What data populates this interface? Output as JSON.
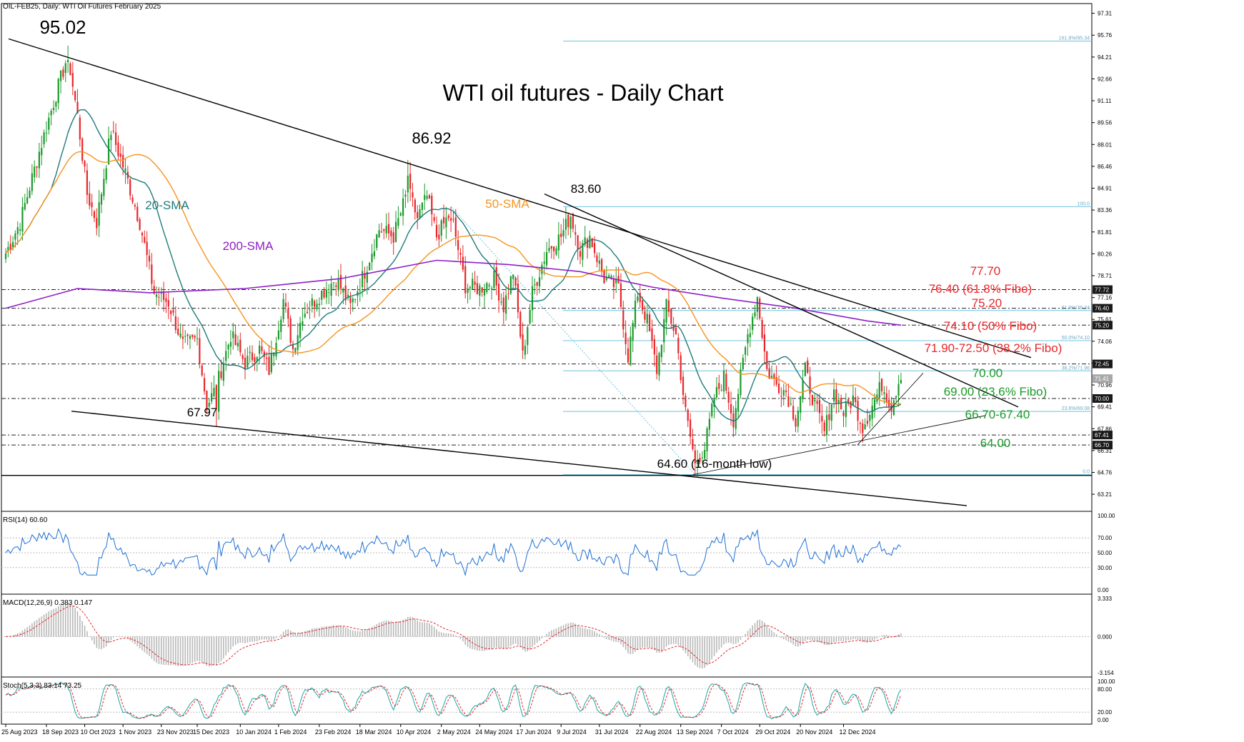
{
  "header": {
    "symbol_line": "OIL-FEB25, Daily: WTI Oil Futures February 2025",
    "rsi_label": "RSI(14) 60.60",
    "macd_label": "MACD(12,26,9) 0.383 0.147",
    "stoch_label": "Stoch(5,3,3) 83.14 73.25"
  },
  "chart_data": [
    {
      "type": "candlestick",
      "title": "WTI oil futures  - Daily Chart",
      "ylim": [
        62.0,
        98.0
      ],
      "y_ticks": [
        "97.31",
        "95.76",
        "94.21",
        "92.66",
        "91.11",
        "89.56",
        "88.01",
        "86.46",
        "84.91",
        "83.36",
        "81.81",
        "80.26",
        "78.71",
        "77.16",
        "75.61",
        "74.06",
        "72.51",
        "70.96",
        "69.41",
        "67.86",
        "66.31",
        "64.76",
        "63.21"
      ],
      "price_tags": [
        {
          "label": "77.72",
          "value": 77.72,
          "style": "dark"
        },
        {
          "label": "76.40",
          "value": 76.4,
          "style": "dark"
        },
        {
          "label": "75.20",
          "value": 75.2,
          "style": "dark"
        },
        {
          "label": "72.45",
          "value": 72.45,
          "style": "dark"
        },
        {
          "label": "71.41",
          "value": 71.41,
          "style": "grey"
        },
        {
          "label": "70.00",
          "value": 70.0,
          "style": "dark"
        },
        {
          "label": "67.41",
          "value": 67.41,
          "style": "dark"
        },
        {
          "label": "66.70",
          "value": 66.7,
          "style": "dark"
        }
      ],
      "x_ticks": [
        "25 Aug 2023",
        "18 Sep 2023",
        "10 Oct 2023",
        "1 Nov 2023",
        "23 Nov 2023",
        "15 Dec 2023",
        "10 Jan 2024",
        "1 Feb 2024",
        "23 Feb 2024",
        "18 Mar 2024",
        "10 Apr 2024",
        "2 May 2024",
        "24 May 2024",
        "17 Jun 2024",
        "9 Jul 2024",
        "31 Jul 2024",
        "22 Aug 2024",
        "13 Sep 2024",
        "7 Oct 2024",
        "29 Oct 2024",
        "20 Nov 2024",
        "12 Dec 2024"
      ],
      "key_points": [
        {
          "i": 0,
          "v": 80.3
        },
        {
          "i": 6,
          "v": 82.5
        },
        {
          "i": 14,
          "v": 87.5
        },
        {
          "i": 20,
          "v": 91.0
        },
        {
          "i": 26,
          "v": 94.4
        },
        {
          "i": 30,
          "v": 90.0
        },
        {
          "i": 34,
          "v": 84.5
        },
        {
          "i": 38,
          "v": 82.5
        },
        {
          "i": 44,
          "v": 89.0
        },
        {
          "i": 50,
          "v": 86.0
        },
        {
          "i": 56,
          "v": 82.5
        },
        {
          "i": 62,
          "v": 77.5
        },
        {
          "i": 68,
          "v": 76.8
        },
        {
          "i": 74,
          "v": 73.8
        },
        {
          "i": 80,
          "v": 74.2
        },
        {
          "i": 84,
          "v": 69.5
        },
        {
          "i": 88,
          "v": 70.8
        },
        {
          "i": 94,
          "v": 74.5
        },
        {
          "i": 100,
          "v": 72.5
        },
        {
          "i": 106,
          "v": 73.5
        },
        {
          "i": 110,
          "v": 72.0
        },
        {
          "i": 116,
          "v": 77.0
        },
        {
          "i": 120,
          "v": 73.5
        },
        {
          "i": 124,
          "v": 76.0
        },
        {
          "i": 132,
          "v": 77.5
        },
        {
          "i": 138,
          "v": 78.5
        },
        {
          "i": 144,
          "v": 76.5
        },
        {
          "i": 150,
          "v": 79.0
        },
        {
          "i": 156,
          "v": 82.0
        },
        {
          "i": 162,
          "v": 81.5
        },
        {
          "i": 168,
          "v": 84.8
        },
        {
          "i": 172,
          "v": 82.8
        },
        {
          "i": 176,
          "v": 84.3
        },
        {
          "i": 180,
          "v": 81.5
        },
        {
          "i": 186,
          "v": 83.2
        },
        {
          "i": 192,
          "v": 78.0
        },
        {
          "i": 198,
          "v": 77.8
        },
        {
          "i": 204,
          "v": 78.5
        },
        {
          "i": 208,
          "v": 76.5
        },
        {
          "i": 212,
          "v": 79.0
        },
        {
          "i": 216,
          "v": 73.0
        },
        {
          "i": 220,
          "v": 77.5
        },
        {
          "i": 226,
          "v": 80.5
        },
        {
          "i": 232,
          "v": 81.5
        },
        {
          "i": 236,
          "v": 83.0
        },
        {
          "i": 240,
          "v": 80.5
        },
        {
          "i": 244,
          "v": 81.5
        },
        {
          "i": 250,
          "v": 78.5
        },
        {
          "i": 256,
          "v": 77.8
        },
        {
          "i": 260,
          "v": 73.0
        },
        {
          "i": 264,
          "v": 77.5
        },
        {
          "i": 268,
          "v": 75.5
        },
        {
          "i": 272,
          "v": 72.0
        },
        {
          "i": 276,
          "v": 76.5
        },
        {
          "i": 280,
          "v": 74.5
        },
        {
          "i": 284,
          "v": 69.0
        },
        {
          "i": 288,
          "v": 65.5
        },
        {
          "i": 292,
          "v": 66.5
        },
        {
          "i": 296,
          "v": 70.0
        },
        {
          "i": 300,
          "v": 71.5
        },
        {
          "i": 304,
          "v": 68.5
        },
        {
          "i": 306,
          "v": 70.5
        },
        {
          "i": 310,
          "v": 74.5
        },
        {
          "i": 314,
          "v": 77.2
        },
        {
          "i": 318,
          "v": 72.0
        },
        {
          "i": 322,
          "v": 71.0
        },
        {
          "i": 326,
          "v": 70.5
        },
        {
          "i": 330,
          "v": 68.5
        },
        {
          "i": 334,
          "v": 72.0
        },
        {
          "i": 338,
          "v": 69.5
        },
        {
          "i": 342,
          "v": 67.6
        },
        {
          "i": 346,
          "v": 70.5
        },
        {
          "i": 350,
          "v": 69.0
        },
        {
          "i": 354,
          "v": 70.0
        },
        {
          "i": 358,
          "v": 68.0
        },
        {
          "i": 362,
          "v": 69.5
        },
        {
          "i": 366,
          "v": 71.0
        },
        {
          "i": 370,
          "v": 69.5
        },
        {
          "i": 374,
          "v": 71.8
        }
      ],
      "sma": [
        {
          "name": "20-SMA",
          "color": "#1f7a7a",
          "period": 20
        },
        {
          "name": "50-SMA",
          "color": "#f7931e",
          "period": 50
        },
        {
          "name": "200-SMA",
          "color": "#8c1fc4",
          "points": [
            [
              0,
              76.4
            ],
            [
              30,
              77.8
            ],
            [
              60,
              77.5
            ],
            [
              100,
              77.8
            ],
            [
              140,
              78.5
            ],
            [
              180,
              79.8
            ],
            [
              210,
              79.5
            ],
            [
              240,
              79.0
            ],
            [
              270,
              77.9
            ],
            [
              300,
              77.1
            ],
            [
              330,
              76.4
            ],
            [
              360,
              75.5
            ],
            [
              374,
              75.2
            ]
          ]
        }
      ],
      "candles_shown": 375,
      "horizontal_levels": [
        77.72,
        76.4,
        75.2,
        72.45,
        70.0,
        67.41,
        66.7
      ],
      "fibo": {
        "levels": [
          {
            "label": "161.8%/95.34",
            "value": 95.34
          },
          {
            "label": "100.0",
            "value": 83.6
          },
          {
            "label": "61.8%/76.24",
            "value": 76.24
          },
          {
            "label": "50.0%/74.10",
            "value": 74.1
          },
          {
            "label": "38.2%/71.96",
            "value": 71.96
          },
          {
            "label": "23.6%/69.08",
            "value": 69.08
          },
          {
            "label": "0.0",
            "value": 64.6
          }
        ]
      },
      "annotations": [
        {
          "text": "95.02",
          "value": 95.02,
          "color": "#000000"
        },
        {
          "text": "86.92",
          "value": 86.92,
          "color": "#000000"
        },
        {
          "text": "83.60",
          "value": 83.6,
          "color": "#000000"
        },
        {
          "text": "67.97",
          "value": 67.97,
          "color": "#000000"
        },
        {
          "text": "64.60 (16-month low)",
          "value": 64.6,
          "color": "#000000"
        },
        {
          "text": "20-SMA",
          "color": "#1f7a7a"
        },
        {
          "text": "50-SMA",
          "color": "#f7931e"
        },
        {
          "text": "200-SMA",
          "color": "#8c1fc4"
        },
        {
          "text": "77.70",
          "value": 77.7,
          "color": "#e8262a"
        },
        {
          "text": "76.40 (61.8% Fibo)",
          "value": 76.4,
          "color": "#e8262a"
        },
        {
          "text": "75.20",
          "value": 75.2,
          "color": "#e8262a"
        },
        {
          "text": "74.10 (50% Fibo)",
          "value": 74.1,
          "color": "#e8262a"
        },
        {
          "text": "71.90-72.50 (38.2% Fibo)",
          "value": 72.2,
          "color": "#e8262a"
        },
        {
          "text": "70.00",
          "value": 70.0,
          "color": "#1a9a2a"
        },
        {
          "text": "69.00 (23.6% Fibo)",
          "value": 69.0,
          "color": "#1a9a2a"
        },
        {
          "text": "66.70-67.40",
          "value": 67.05,
          "color": "#1a9a2a"
        },
        {
          "text": "64.00",
          "value": 64.0,
          "color": "#1a9a2a"
        }
      ],
      "colors": {
        "up": "#1a9a2a",
        "down": "#e8262a",
        "grid": "#000000",
        "fibo": "#6fc3e0"
      }
    },
    {
      "type": "line",
      "name": "RSI(14)",
      "ylim": [
        0,
        100
      ],
      "y_ticks": [
        "100.00",
        "70.00",
        "50.00",
        "30.00",
        "0.00"
      ],
      "levels": [
        70,
        50,
        30
      ],
      "last_value": 60.6,
      "color": "#1f6fd6"
    },
    {
      "type": "bar",
      "name": "MACD(12,26,9)",
      "ylim": [
        -3.154,
        3.333
      ],
      "y_ticks": [
        "3.333",
        "0.000",
        "-3.154"
      ],
      "macd_last": 0.383,
      "signal_last": 0.147,
      "colors": {
        "hist": "#b8b8b8",
        "signal": "#e8262a"
      }
    },
    {
      "type": "line",
      "name": "Stoch(5,3,3)",
      "ylim": [
        0,
        100
      ],
      "y_ticks": [
        "100.00",
        "80.00",
        "20.00",
        "0.00"
      ],
      "k_last": 83.14,
      "d_last": 73.25,
      "colors": {
        "k": "#1aa5a5",
        "d": "#e8262a"
      }
    }
  ]
}
